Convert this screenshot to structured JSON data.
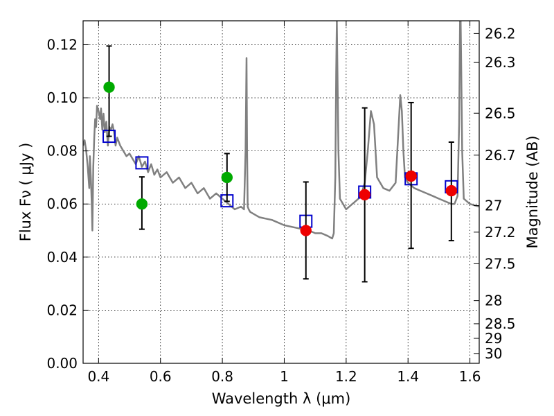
{
  "chart_data": {
    "type": "scatter",
    "title": "",
    "xlabel": "Wavelength  λ (μm)",
    "ylabel": "Flux  Fν  ( μJy )",
    "y2label": "Magnitude (AB)",
    "xlim": [
      0.35,
      1.63
    ],
    "ylim": [
      0.0,
      0.129
    ],
    "grid": true,
    "x_ticks": [
      0.4,
      0.6,
      0.8,
      1.0,
      1.2,
      1.4,
      1.6
    ],
    "x_tick_labels": [
      "0.4",
      "0.6",
      "0.8",
      "1",
      "1.2",
      "1.4",
      "1.6"
    ],
    "y_ticks": [
      0.0,
      0.02,
      0.04,
      0.06,
      0.08,
      0.1,
      0.12
    ],
    "y_tick_labels": [
      "0.00",
      "0.02",
      "0.04",
      "0.06",
      "0.08",
      "0.10",
      "0.12"
    ],
    "magnitude_ticks": [
      {
        "label": "26.2",
        "flux": 0.1242
      },
      {
        "label": "26.3",
        "flux": 0.1133
      },
      {
        "label": "26.5",
        "flux": 0.0942
      },
      {
        "label": "26.7",
        "flux": 0.0784
      },
      {
        "label": "27",
        "flux": 0.0594
      },
      {
        "label": "27.2",
        "flux": 0.0494
      },
      {
        "label": "27.5",
        "flux": 0.0375
      },
      {
        "label": "28",
        "flux": 0.0236
      },
      {
        "label": "28.5",
        "flux": 0.0149
      },
      {
        "label": "29",
        "flux": 0.0094
      },
      {
        "label": "30",
        "flux": 0.0037
      }
    ],
    "series": [
      {
        "name": "model_spectrum",
        "kind": "line",
        "color": "#808080",
        "x": [
          0.35,
          0.355,
          0.36,
          0.365,
          0.37,
          0.372,
          0.375,
          0.378,
          0.38,
          0.383,
          0.386,
          0.389,
          0.392,
          0.395,
          0.4,
          0.405,
          0.408,
          0.412,
          0.416,
          0.42,
          0.425,
          0.43,
          0.435,
          0.44,
          0.445,
          0.45,
          0.455,
          0.46,
          0.47,
          0.48,
          0.49,
          0.5,
          0.51,
          0.52,
          0.53,
          0.54,
          0.55,
          0.56,
          0.57,
          0.58,
          0.59,
          0.6,
          0.62,
          0.64,
          0.66,
          0.68,
          0.7,
          0.72,
          0.74,
          0.76,
          0.78,
          0.8,
          0.82,
          0.84,
          0.86,
          0.87,
          0.875,
          0.878,
          0.88,
          0.882,
          0.885,
          0.89,
          0.92,
          0.96,
          1.0,
          1.04,
          1.08,
          1.1,
          1.12,
          1.14,
          1.155,
          1.16,
          1.165,
          1.168,
          1.17,
          1.172,
          1.175,
          1.18,
          1.19,
          1.2,
          1.22,
          1.24,
          1.25,
          1.26,
          1.27,
          1.28,
          1.29,
          1.3,
          1.32,
          1.34,
          1.36,
          1.37,
          1.375,
          1.38,
          1.385,
          1.39,
          1.4,
          1.42,
          1.44,
          1.46,
          1.48,
          1.5,
          1.52,
          1.54,
          1.55,
          1.56,
          1.565,
          1.568,
          1.57,
          1.572,
          1.575,
          1.58,
          1.6,
          1.63
        ],
        "y": [
          0.082,
          0.084,
          0.08,
          0.074,
          0.066,
          0.078,
          0.07,
          0.06,
          0.05,
          0.074,
          0.085,
          0.092,
          0.089,
          0.097,
          0.095,
          0.092,
          0.096,
          0.088,
          0.094,
          0.087,
          0.091,
          0.082,
          0.089,
          0.088,
          0.09,
          0.087,
          0.082,
          0.085,
          0.082,
          0.08,
          0.078,
          0.079,
          0.077,
          0.075,
          0.078,
          0.074,
          0.076,
          0.072,
          0.075,
          0.071,
          0.073,
          0.07,
          0.072,
          0.068,
          0.07,
          0.066,
          0.068,
          0.064,
          0.066,
          0.062,
          0.064,
          0.062,
          0.06,
          0.058,
          0.059,
          0.058,
          0.08,
          0.115,
          0.08,
          0.059,
          0.058,
          0.057,
          0.055,
          0.054,
          0.052,
          0.051,
          0.05,
          0.049,
          0.049,
          0.048,
          0.047,
          0.049,
          0.07,
          0.11,
          0.129,
          0.11,
          0.08,
          0.062,
          0.06,
          0.058,
          0.06,
          0.062,
          0.064,
          0.068,
          0.08,
          0.095,
          0.09,
          0.07,
          0.066,
          0.065,
          0.068,
          0.09,
          0.101,
          0.095,
          0.08,
          0.07,
          0.068,
          0.066,
          0.065,
          0.064,
          0.063,
          0.062,
          0.061,
          0.06,
          0.06,
          0.063,
          0.09,
          0.129,
          0.129,
          0.11,
          0.08,
          0.062,
          0.06,
          0.059
        ]
      },
      {
        "name": "model_photometry",
        "kind": "open_square",
        "color": "#0000cc",
        "x": [
          0.434,
          0.54,
          0.815,
          1.07,
          1.26,
          1.41,
          1.54
        ],
        "y": [
          0.0855,
          0.0755,
          0.0612,
          0.0535,
          0.0645,
          0.0695,
          0.0665
        ]
      },
      {
        "name": "observed_hst_optical",
        "kind": "filled_circle",
        "color": "#00aa00",
        "x": [
          0.434,
          0.54,
          0.815
        ],
        "y": [
          0.104,
          0.06,
          0.07
        ],
        "yerr_low": [
          0.0855,
          0.0505,
          0.061
        ],
        "yerr_high": [
          0.1195,
          0.0702,
          0.079
        ]
      },
      {
        "name": "observed_hst_nir",
        "kind": "filled_circle",
        "color": "#ee0000",
        "x": [
          1.07,
          1.26,
          1.41,
          1.54
        ],
        "y": [
          0.05,
          0.0635,
          0.0705,
          0.065
        ],
        "yerr_low": [
          0.0318,
          0.0307,
          0.0433,
          0.0462
        ],
        "yerr_high": [
          0.0683,
          0.0962,
          0.0982,
          0.0833
        ]
      }
    ]
  }
}
